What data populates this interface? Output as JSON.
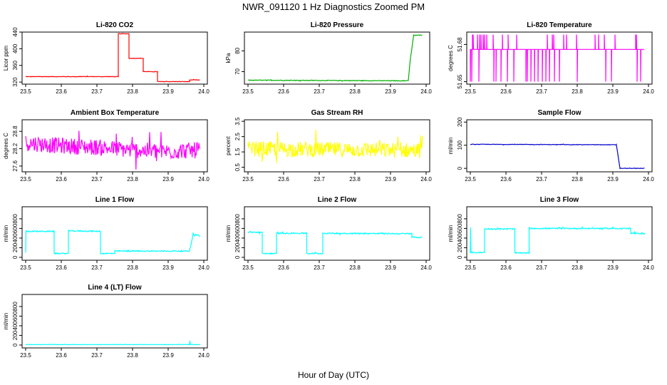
{
  "page": {
    "title": "NWR_091120  1 Hz Diagnostics Zoomed PM",
    "xlabel": "Hour of Day (UTC)"
  },
  "chart_data": [
    {
      "type": "line",
      "title": "Li-820 CO2",
      "ylabel": "Licor ppm",
      "color": "#ff0000",
      "xlim": [
        23.5,
        24.0
      ],
      "ylim": [
        315,
        440
      ],
      "xticks": [
        "23.5",
        "23.6",
        "23.7",
        "23.8",
        "23.9",
        "24.0"
      ],
      "yticks": [
        320,
        360,
        400,
        440
      ],
      "noise": 0.6,
      "x": [
        23.5,
        23.76,
        23.76,
        23.79,
        23.79,
        23.83,
        23.83,
        23.87,
        23.87,
        23.96,
        23.96,
        23.99
      ],
      "y": [
        333,
        333,
        436,
        436,
        377,
        377,
        345,
        345,
        321,
        321,
        325,
        325
      ]
    },
    {
      "type": "line",
      "title": "Li-820 Pressure",
      "ylabel": "kPa",
      "color": "#00b000",
      "xlim": [
        23.5,
        24.0
      ],
      "ylim": [
        64,
        89
      ],
      "xticks": [
        "23.5",
        "23.6",
        "23.7",
        "23.8",
        "23.9",
        "24.0"
      ],
      "yticks": [
        70,
        80
      ],
      "noise": 0.15,
      "x": [
        23.5,
        23.94,
        23.95,
        23.955,
        23.965,
        23.99
      ],
      "y": [
        65.9,
        65.6,
        65.8,
        75,
        87.5,
        87.5
      ]
    },
    {
      "type": "line",
      "title": "Li-820 Temperature",
      "ylabel": "degrees C",
      "color": "#ff00ff",
      "xlim": [
        23.5,
        24.0
      ],
      "ylim": [
        51.648,
        51.69
      ],
      "xticks": [
        "23.5",
        "23.6",
        "23.7",
        "23.8",
        "23.9",
        "24.0"
      ],
      "yticks": [
        51.65,
        51.68
      ],
      "ytick_labels": [
        "51.65",
        "51.68"
      ],
      "pattern": "binary",
      "levels": [
        51.65,
        51.676,
        51.688
      ],
      "noise": 0,
      "x": [
        23.5,
        23.99
      ],
      "y": [
        51.676,
        51.676
      ]
    },
    {
      "type": "line",
      "title": "Ambient Box Temperature",
      "ylabel": "degrees C",
      "color": "#ff00ff",
      "xlim": [
        23.5,
        24.0
      ],
      "ylim": [
        27.4,
        29.2
      ],
      "xticks": [
        "23.5",
        "23.6",
        "23.7",
        "23.8",
        "23.9",
        "24.0"
      ],
      "yticks": [
        27.6,
        28.2,
        28.8
      ],
      "noise": 0.28,
      "x": [
        23.5,
        23.6,
        23.7,
        23.8,
        23.9,
        23.99
      ],
      "y": [
        28.4,
        28.3,
        28.25,
        28.15,
        28.1,
        28.15
      ]
    },
    {
      "type": "line",
      "title": "Gas Stream RH",
      "ylabel": "percent",
      "color": "#ffff00",
      "xlim": [
        23.5,
        24.0
      ],
      "ylim": [
        0.2,
        3.6
      ],
      "xticks": [
        "23.5",
        "23.6",
        "23.7",
        "23.8",
        "23.9",
        "24.0"
      ],
      "yticks": [
        0.5,
        1.5,
        2.5,
        3.5
      ],
      "noise": 0.5,
      "x": [
        23.5,
        23.99
      ],
      "y": [
        1.7,
        1.6
      ]
    },
    {
      "type": "line",
      "title": "Sample Flow",
      "ylabel": "ml/min",
      "color": "#0000cc",
      "xlim": [
        23.5,
        24.0
      ],
      "ylim": [
        -15,
        210
      ],
      "xticks": [
        "23.5",
        "23.6",
        "23.7",
        "23.8",
        "23.9",
        "24.0"
      ],
      "yticks": [
        0,
        100,
        200
      ],
      "noise": 1,
      "x": [
        23.5,
        23.91,
        23.92,
        23.99
      ],
      "y": [
        104,
        102,
        0,
        0
      ]
    },
    {
      "type": "line",
      "title": "Line 1 Flow",
      "ylabel": "ml/min",
      "color": "#00ffff",
      "xlim": [
        23.5,
        24.0
      ],
      "ylim": [
        -60,
        1050
      ],
      "xticks": [
        "23.5",
        "23.6",
        "23.7",
        "23.8",
        "23.9",
        "24.0"
      ],
      "yticks": [
        0,
        200,
        400,
        600,
        800
      ],
      "noise": 12,
      "x": [
        23.5,
        23.501,
        23.502,
        23.58,
        23.58,
        23.62,
        23.62,
        23.71,
        23.71,
        23.75,
        23.75,
        23.96,
        23.97,
        23.99
      ],
      "y": [
        100,
        560,
        540,
        540,
        80,
        80,
        550,
        540,
        80,
        80,
        130,
        130,
        480,
        450
      ]
    },
    {
      "type": "line",
      "title": "Line 2 Flow",
      "ylabel": "ml/min",
      "color": "#00ffff",
      "xlim": [
        23.5,
        24.0
      ],
      "ylim": [
        -60,
        1050
      ],
      "xticks": [
        "23.5",
        "23.6",
        "23.7",
        "23.8",
        "23.9",
        "24.0"
      ],
      "yticks": [
        0,
        200,
        400,
        600,
        800
      ],
      "noise": 12,
      "x": [
        23.5,
        23.54,
        23.54,
        23.58,
        23.58,
        23.665,
        23.665,
        23.71,
        23.71,
        23.96,
        23.96,
        23.99
      ],
      "y": [
        520,
        520,
        80,
        80,
        500,
        500,
        80,
        80,
        500,
        490,
        420,
        410
      ]
    },
    {
      "type": "line",
      "title": "Line 3 Flow",
      "ylabel": "ml/min",
      "color": "#00ffff",
      "xlim": [
        23.5,
        24.0
      ],
      "ylim": [
        -60,
        1050
      ],
      "xticks": [
        "23.5",
        "23.6",
        "23.7",
        "23.8",
        "23.9",
        "24.0"
      ],
      "yticks": [
        0,
        200,
        400,
        600,
        800
      ],
      "noise": 12,
      "x": [
        23.5,
        23.501,
        23.502,
        23.54,
        23.54,
        23.625,
        23.625,
        23.665,
        23.665,
        23.95,
        23.95,
        23.99
      ],
      "y": [
        100,
        620,
        100,
        100,
        590,
        590,
        90,
        90,
        600,
        600,
        500,
        490
      ]
    },
    {
      "type": "line",
      "title": "Line 4 (LT) Flow",
      "ylabel": "ml/min",
      "color": "#00ffff",
      "xlim": [
        23.5,
        24.0
      ],
      "ylim": [
        -60,
        1050
      ],
      "xticks": [
        "23.5",
        "23.6",
        "23.7",
        "23.8",
        "23.9",
        "24.0"
      ],
      "yticks": [
        0,
        200,
        400,
        600,
        800
      ],
      "noise": 3,
      "spikes": [
        [
          23.96,
          90
        ]
      ],
      "x": [
        23.5,
        23.99
      ],
      "y": [
        10,
        10
      ]
    }
  ]
}
